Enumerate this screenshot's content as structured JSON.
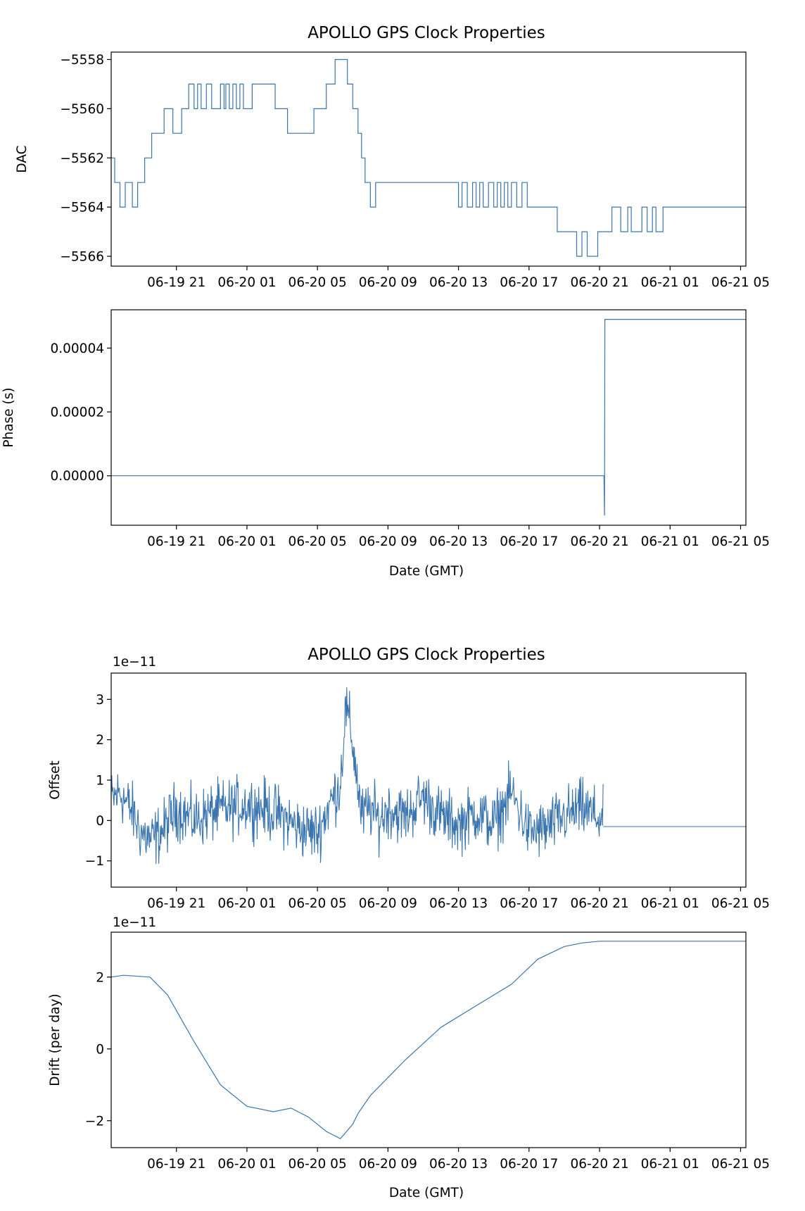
{
  "titles": [
    "APOLLO GPS Clock Properties",
    "APOLLO GPS Clock Properties"
  ],
  "x_tick_labels": [
    "06-19 21",
    "06-20 01",
    "06-20 05",
    "06-20 09",
    "06-20 13",
    "06-20 17",
    "06-20 21",
    "06-21 01",
    "06-21 05"
  ],
  "xlabel": "Date (GMT)",
  "line_color": "#3a75b0",
  "chart_data": [
    {
      "type": "line",
      "title": "APOLLO GPS Clock Properties",
      "ylabel": "DAC",
      "xlabel": "",
      "x_unit": "hours since 06-19 00:00 GMT",
      "xlim": [
        17.3,
        53.3
      ],
      "ylim": [
        -5566.4,
        -5557.7
      ],
      "yticks": [
        -5566,
        -5564,
        -5562,
        -5560,
        -5558
      ],
      "ytick_labels": [
        "−5566",
        "−5564",
        "−5562",
        "−5560",
        "−5558"
      ],
      "step": true,
      "series": [
        {
          "x": [
            17.3,
            17.5,
            17.8,
            18.1,
            18.5,
            18.8,
            19.2,
            19.6,
            20.3,
            20.8,
            21.3,
            21.7,
            22.0,
            22.2,
            22.4,
            22.7,
            23.0,
            23.5,
            23.7,
            23.8,
            24.0,
            24.2,
            24.4,
            24.6,
            24.8,
            25.3,
            26.6,
            27.3,
            28.8,
            29.5,
            30.0,
            30.7,
            31.0,
            31.3,
            31.5,
            31.7,
            32.0,
            32.3,
            33.0,
            37.0,
            37.2,
            37.5,
            37.8,
            38.0,
            38.2,
            38.4,
            38.7,
            39.0,
            39.2,
            39.4,
            39.6,
            39.8,
            40.0,
            40.3,
            40.6,
            40.9,
            42.6,
            43.7,
            44.0,
            44.3,
            44.9,
            45.7,
            46.2,
            46.6,
            46.8,
            47.4,
            47.7,
            48.0,
            48.2,
            48.6,
            48.9,
            53.3
          ],
          "y": [
            -5562,
            -5563,
            -5564,
            -5563,
            -5564,
            -5563,
            -5562,
            -5561,
            -5560,
            -5561,
            -5560,
            -5559,
            -5560,
            -5559,
            -5560,
            -5559,
            -5560,
            -5559,
            -5560,
            -5559,
            -5560,
            -5559,
            -5560,
            -5559,
            -5560,
            -5559,
            -5560,
            -5561,
            -5560,
            -5559,
            -5558,
            -5559,
            -5560,
            -5561,
            -5562,
            -5563,
            -5564,
            -5563,
            -5563,
            -5564,
            -5563,
            -5564,
            -5563,
            -5564,
            -5563,
            -5564,
            -5563,
            -5564,
            -5563,
            -5564,
            -5563,
            -5564,
            -5563,
            -5564,
            -5563,
            -5564,
            -5565,
            -5566,
            -5565,
            -5566,
            -5565,
            -5564,
            -5565,
            -5564,
            -5565,
            -5564,
            -5565,
            -5564,
            -5565,
            -5564,
            -5564,
            -5564
          ]
        }
      ]
    },
    {
      "type": "line",
      "title": "",
      "ylabel": "Phase (s)",
      "xlabel": "Date (GMT)",
      "x_unit": "hours since 06-19 00:00 GMT",
      "xlim": [
        17.3,
        53.3
      ],
      "ylim": [
        -1.55e-05,
        5.2e-05
      ],
      "yticks": [
        0,
        2e-05,
        4e-05
      ],
      "ytick_labels": [
        "0.00000",
        "0.00002",
        "0.00004"
      ],
      "series": [
        {
          "x": [
            17.3,
            30.0,
            45.0,
            45.25,
            45.28,
            45.3,
            45.32,
            53.3
          ],
          "y": [
            0,
            0,
            0,
            0,
            -1.25e-05,
            4.9e-05,
            4.9e-05,
            4.9e-05
          ]
        }
      ]
    },
    {
      "type": "line",
      "title": "APOLLO GPS Clock Properties",
      "ylabel": "Offset",
      "xlabel": "",
      "y_multiplier": "1e−11",
      "x_unit": "hours since 06-19 00:00 GMT",
      "xlim": [
        17.3,
        53.3
      ],
      "ylim": [
        -1.65,
        3.65
      ],
      "yticks": [
        -1,
        0,
        1,
        2,
        3
      ],
      "ytick_labels": [
        "−1",
        "0",
        "1",
        "2",
        "3"
      ],
      "noise_amplitude": 0.55,
      "series": [
        {
          "x": [
            17.3,
            17.8,
            18.5,
            19.0,
            19.6,
            20.3,
            21.0,
            22.0,
            23.0,
            24.0,
            25.0,
            26.0,
            27.0,
            28.0,
            29.0,
            29.8,
            30.3,
            30.6,
            30.9,
            31.2,
            31.5,
            32.0,
            32.5,
            33.0,
            34.0,
            35.0,
            36.0,
            37.0,
            38.0,
            39.0,
            40.0,
            41.0,
            42.0,
            43.0,
            44.0,
            45.2
          ],
          "y": [
            0.5,
            0.7,
            0.2,
            -0.3,
            -0.5,
            -0.2,
            0.3,
            0.0,
            0.2,
            0.3,
            0.4,
            0.3,
            0.1,
            -0.2,
            -0.3,
            0.5,
            0.9,
            2.8,
            2.2,
            1.2,
            0.1,
            0.3,
            0.0,
            0.3,
            0.1,
            0.6,
            0.1,
            -0.1,
            0.2,
            -0.1,
            0.7,
            -0.3,
            -0.2,
            0.1,
            0.3,
            0.0
          ]
        },
        {
          "x": [
            45.2,
            53.3
          ],
          "y": [
            -0.15,
            -0.15
          ]
        }
      ]
    },
    {
      "type": "line",
      "title": "",
      "ylabel": "Drift (per day)",
      "xlabel": "Date (GMT)",
      "y_multiplier": "1e−11",
      "x_unit": "hours since 06-19 00:00 GMT",
      "xlim": [
        17.3,
        53.3
      ],
      "ylim": [
        -2.75,
        3.25
      ],
      "yticks": [
        -2,
        0,
        2
      ],
      "ytick_labels": [
        "−2",
        "0",
        "2"
      ],
      "series": [
        {
          "x": [
            17.3,
            18.0,
            19.5,
            20.5,
            22.0,
            23.5,
            25.0,
            26.5,
            27.5,
            28.5,
            29.5,
            30.3,
            31.0,
            31.3,
            32.0,
            34.0,
            36.0,
            38.0,
            40.0,
            41.5,
            43.0,
            44.0,
            45.0,
            46.5,
            48.0,
            53.3
          ],
          "y": [
            2.0,
            2.05,
            2.0,
            1.5,
            0.2,
            -1.0,
            -1.6,
            -1.75,
            -1.65,
            -1.9,
            -2.3,
            -2.5,
            -2.1,
            -1.8,
            -1.3,
            -0.3,
            0.6,
            1.2,
            1.8,
            2.5,
            2.85,
            2.95,
            3.0,
            3.0,
            3.0,
            3.0
          ]
        }
      ]
    }
  ]
}
